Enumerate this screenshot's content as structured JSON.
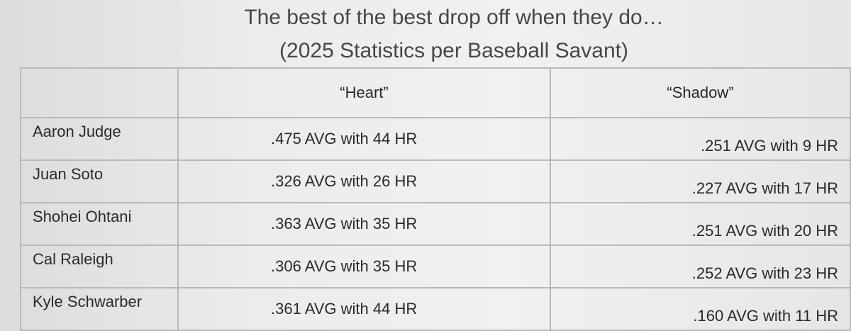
{
  "header": {
    "title": "The best of the best drop off when they do…",
    "subtitle": "(2025 Statistics per Baseball Savant)"
  },
  "table": {
    "columns": [
      "“Heart”",
      "“Shadow”"
    ],
    "rows": [
      [
        "Aaron Judge",
        ".475 AVG with 44 HR",
        ".251 AVG with 9 HR"
      ],
      [
        "Juan Soto",
        ".326 AVG with 26 HR",
        ".227 AVG with 17 HR"
      ],
      [
        "Shohei Ohtani",
        ".363 AVG with 35 HR",
        ".251 AVG with 20 HR"
      ],
      [
        "Cal Raleigh",
        ".306 AVG with 35 HR",
        ".252 AVG with 23 HR"
      ],
      [
        "Kyle Schwarber",
        ".361 AVG with 44 HR",
        ".160 AVG with 11 HR"
      ]
    ]
  }
}
